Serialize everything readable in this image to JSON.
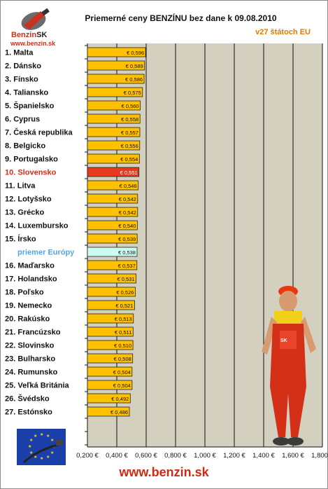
{
  "header": {
    "logo_brand": "Benzin",
    "logo_sk": "SK",
    "logo_url": "www.benzin.sk"
  },
  "footer": {
    "url": "www.benzin.sk"
  },
  "colors": {
    "bar": "#ffc000",
    "highlight": "#e8381e",
    "average": "#ccfff0",
    "plot_bg": "#d4d0c0"
  },
  "chart_data": {
    "type": "bar",
    "orientation": "horizontal",
    "title": "Priemerné ceny BENZÍNU bez dane k 09.08.2010",
    "subtitle": "v27 štátoch EU",
    "xlabel": "",
    "ylabel": "",
    "xlim": [
      0.2,
      1.8
    ],
    "grid": true,
    "tick_values": [
      0.2,
      0.4,
      0.6,
      0.8,
      1.0,
      1.2,
      1.4,
      1.6,
      1.8
    ],
    "tick_labels": [
      "0,200 €",
      "0,400 €",
      "0,600 €",
      "0,800 €",
      "1,000 €",
      "1,200 €",
      "1,400 €",
      "1,600 €",
      "1,800 €"
    ],
    "categories": [
      "1. Malta",
      "2. Dánsko",
      "3. Fínsko",
      "4. Taliansko",
      "5. Španielsko",
      "6. Cyprus",
      "7. Česká republika",
      "8. Belgicko",
      "9. Portugalsko",
      "10. Slovensko",
      "11. Litva",
      "12. Lotyšsko",
      "13. Grécko",
      "14. Luxembursko",
      "15. Írsko",
      "priemer Európy",
      "16. Maďarsko",
      "17. Holandsko",
      "18. Poľsko",
      "19. Nemecko",
      "20. Rakúsko",
      "21. Francúzsko",
      "22. Slovinsko",
      "23. Bulharsko",
      "24. Rumunsko",
      "25. Veľká Británia",
      "26. Švédsko",
      "27. Estónsko"
    ],
    "values": [
      0.596,
      0.589,
      0.586,
      0.575,
      0.56,
      0.558,
      0.557,
      0.556,
      0.554,
      0.551,
      0.546,
      0.542,
      0.542,
      0.54,
      0.539,
      0.538,
      0.537,
      0.531,
      0.526,
      0.521,
      0.513,
      0.511,
      0.51,
      0.508,
      0.504,
      0.504,
      0.492,
      0.486
    ],
    "value_labels": [
      "€ 0,596",
      "€ 0,589",
      "€ 0,586",
      "€ 0,575",
      "€ 0,560",
      "€ 0,558",
      "€ 0,557",
      "€ 0,556",
      "€ 0,554",
      "€ 0,551",
      "€ 0,546",
      "€ 0,542",
      "€ 0,542",
      "€ 0,540",
      "€ 0,539",
      "€ 0,538",
      "€ 0,537",
      "€ 0,531",
      "€ 0,526",
      "€ 0,521",
      "€ 0,513",
      "€ 0,511",
      "€ 0,510",
      "€ 0,508",
      "€ 0,504",
      "€ 0,504",
      "€ 0,492",
      "€ 0,486"
    ],
    "highlight_index": 9,
    "average_index": 15
  }
}
